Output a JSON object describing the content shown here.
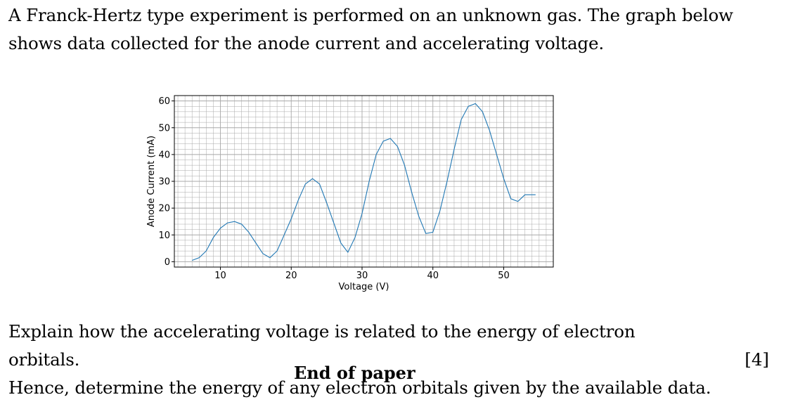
{
  "intro_line1": "A Franck-Hertz type experiment is performed on an unknown gas. The graph below",
  "intro_line2": "shows data collected for the anode current and accelerating voltage.",
  "question_line1": "Explain how the accelerating voltage is related to the energy of electron orbitals.",
  "question_line2": "Hence, determine the energy of any electron orbitals given by the available data.",
  "marks": "[4]",
  "footer": "End of paper",
  "colors": {
    "line": "#1f77b4",
    "grid": "#a8a8a8"
  },
  "chart_data": {
    "type": "line",
    "title": "",
    "xlabel": "Voltage (V)",
    "ylabel": "Anode Current (mA)",
    "xlim": [
      3.5,
      57
    ],
    "ylim": [
      -2,
      62
    ],
    "xticks": [
      10,
      20,
      30,
      40,
      50
    ],
    "yticks": [
      0,
      10,
      20,
      30,
      40,
      50,
      60
    ],
    "grid": true,
    "minor_grid": true,
    "series": [
      {
        "x": [
          6,
          7,
          8,
          9,
          10,
          11,
          12,
          13,
          14,
          15,
          16,
          17,
          18,
          19,
          20,
          21,
          22,
          23,
          24,
          25,
          26,
          27,
          28,
          29,
          30,
          31,
          32,
          33,
          34,
          35,
          36,
          37,
          38,
          39,
          40,
          41,
          42,
          43,
          44,
          45,
          46,
          47,
          48,
          49,
          50,
          51,
          52,
          53,
          54,
          54.5
        ],
        "y": [
          0.5,
          1.5,
          4,
          9,
          12.5,
          14.5,
          15,
          14,
          11,
          7,
          3,
          1.5,
          4,
          10,
          16,
          23,
          29,
          31,
          29,
          22,
          14.5,
          7,
          3.5,
          9,
          18,
          30,
          40,
          45,
          46,
          43,
          36,
          26,
          17,
          10.5,
          11,
          19,
          30,
          42,
          53,
          58,
          59,
          56,
          49,
          40,
          31,
          23.5,
          22.5,
          25,
          25,
          25
        ]
      }
    ]
  }
}
